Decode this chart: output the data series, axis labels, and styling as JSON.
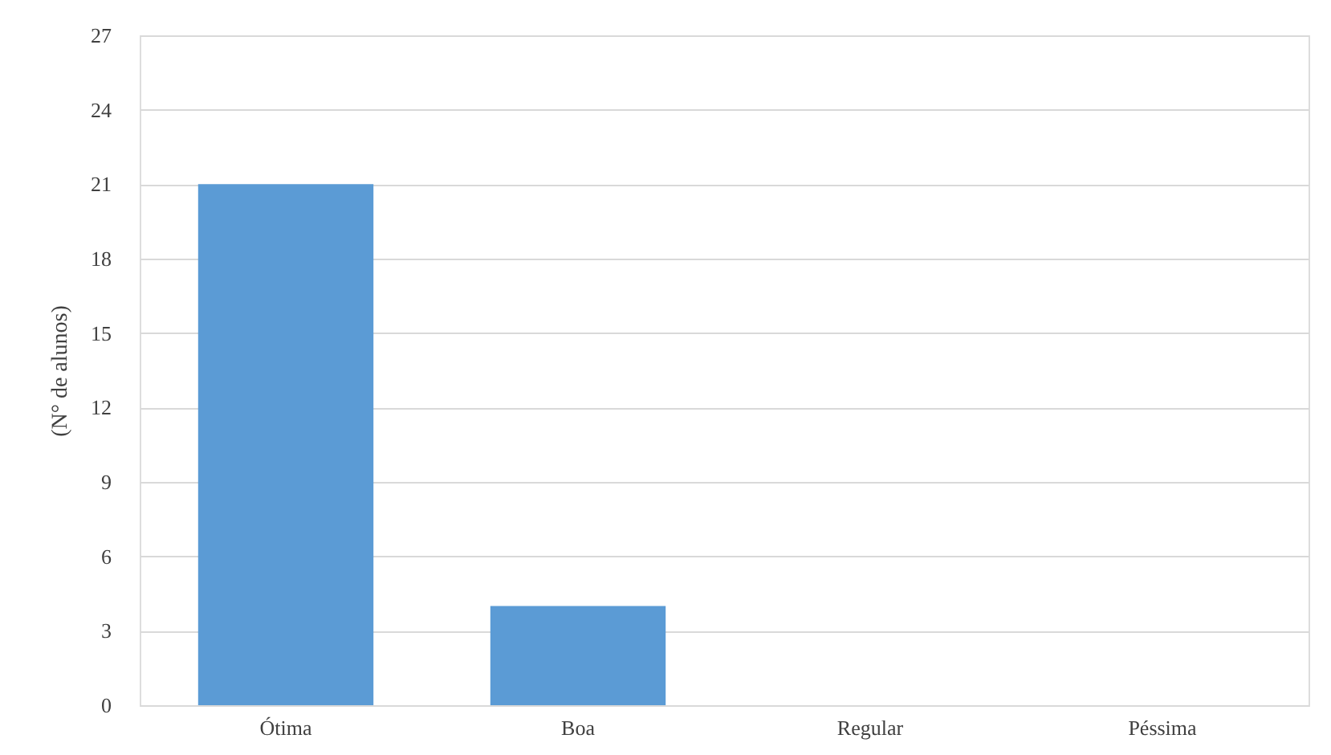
{
  "chart_data": {
    "type": "bar",
    "ylabel": "(N° de alunos)",
    "categories": [
      "Ótima",
      "Boa",
      "Regular",
      "Péssima"
    ],
    "values": [
      21,
      4,
      0,
      0
    ],
    "color": "#5b9bd5",
    "ylim": [
      0,
      27
    ],
    "yticks": [
      0,
      3,
      6,
      9,
      12,
      15,
      18,
      21,
      24,
      27
    ],
    "grid": "y"
  }
}
